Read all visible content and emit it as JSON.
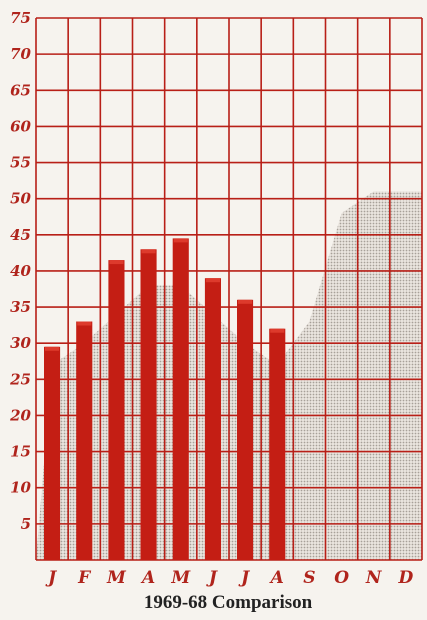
{
  "chart_data": {
    "type": "bar",
    "title": "1969-68 Comparison",
    "xlabel": "",
    "ylabel": "",
    "categories": [
      "J",
      "F",
      "M",
      "A",
      "M",
      "J",
      "J",
      "A",
      "S",
      "O",
      "N",
      "D"
    ],
    "y_ticks": [
      "5",
      "10",
      "15",
      "20",
      "25",
      "30",
      "35",
      "40",
      "45",
      "50",
      "55",
      "60",
      "65",
      "70",
      "75"
    ],
    "ylim": [
      0,
      75
    ],
    "grid": true,
    "series": [
      {
        "values": [
          29.5,
          33,
          41.5,
          43,
          44.5,
          39,
          36,
          32,
          null,
          null,
          null,
          null
        ]
      },
      {
        "values": [
          27,
          30,
          34,
          38,
          38,
          34,
          30,
          27,
          33,
          48,
          51,
          51
        ]
      }
    ],
    "colors": {
      "bars": "#c41e14",
      "bars_highlight": "#dd3a2c",
      "grid": "#b81f17",
      "background": "#f6f3ee",
      "shaded_area": "#c8c2bb"
    }
  }
}
